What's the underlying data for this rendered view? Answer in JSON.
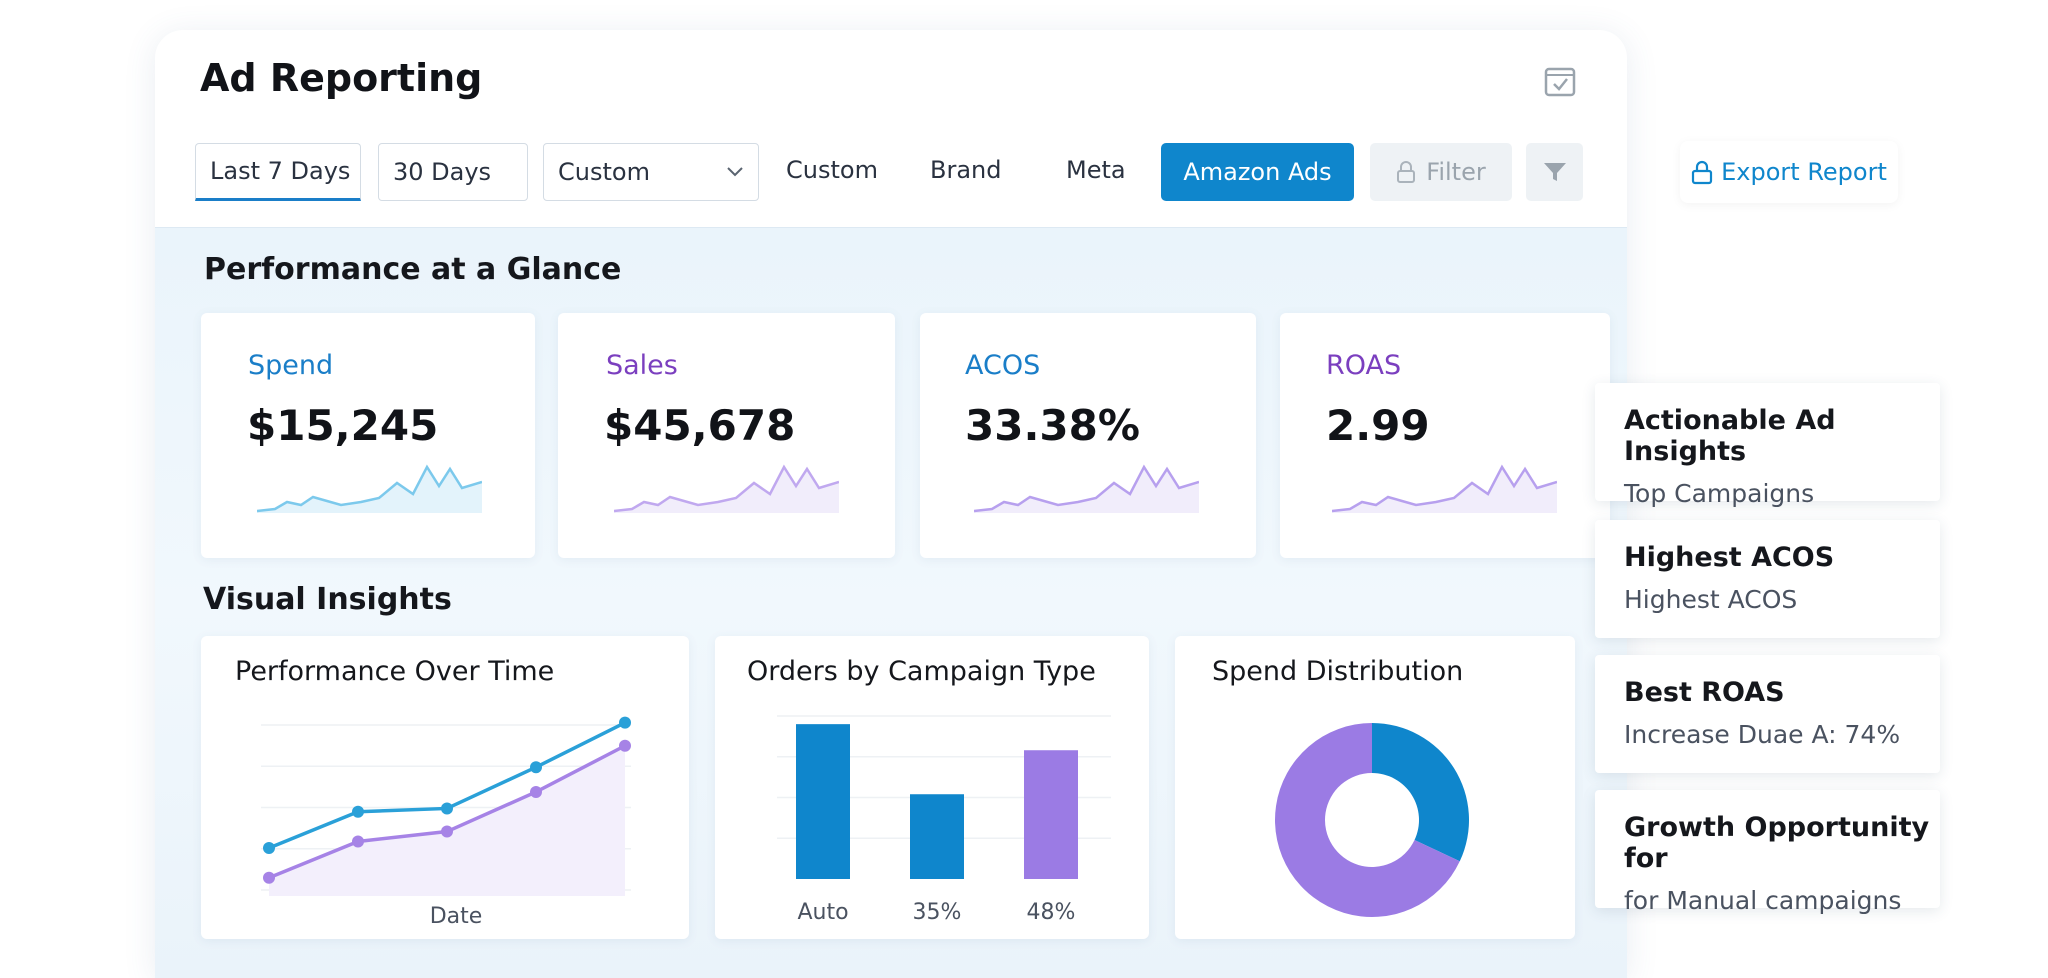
{
  "header": {
    "title": "Ad Reporting"
  },
  "toolbar": {
    "tab_last7": "Last 7 Days",
    "tab_30": "30 Days",
    "select_custom": "Custom",
    "link_custom": "Custom",
    "link_brand": "Brand",
    "link_meta": "Meta",
    "btn_amazon": "Amazon Ads",
    "btn_filter": "Filter",
    "btn_export": "Export Report"
  },
  "glance": {
    "title": "Performance at a Glance",
    "kpis": [
      {
        "label": "Spend",
        "value": "$15,245",
        "color": "#1a7ec8"
      },
      {
        "label": "Sales",
        "value": "$45,678",
        "color": "#7b3fbf"
      },
      {
        "label": "ACOS",
        "value": "33.38%",
        "color": "#1a7ec8"
      },
      {
        "label": "ROAS",
        "value": "2.99",
        "color": "#7b3fbf"
      }
    ]
  },
  "visual": {
    "title": "Visual Insights",
    "perf_title": "Performance Over Time",
    "perf_xlabel": "Date",
    "orders_title": "Orders by Campaign Type",
    "spend_title": "Spend Distribution"
  },
  "chart_data": [
    {
      "type": "line",
      "title": "Performance Over Time",
      "xlabel": "Date",
      "ylabel": "",
      "x": [
        1,
        2,
        3,
        4,
        5
      ],
      "ylim": [
        0,
        100
      ],
      "series": [
        {
          "name": "series-blue",
          "color": "#2aa0d8",
          "values": [
            23,
            45,
            47,
            72,
            99
          ]
        },
        {
          "name": "series-purple",
          "color": "#a683e6",
          "values": [
            5,
            27,
            33,
            57,
            85
          ]
        }
      ]
    },
    {
      "type": "bar",
      "title": "Orders by Campaign Type",
      "categories": [
        "Auto",
        "35%",
        "48%"
      ],
      "values": [
        95,
        52,
        79
      ],
      "colors": [
        "#0f86cc",
        "#0f86cc",
        "#9b7be4"
      ],
      "ylim": [
        0,
        100
      ]
    },
    {
      "type": "pie",
      "title": "Spend Distribution",
      "slices": [
        {
          "label": "blue",
          "value": 32,
          "color": "#0f86cc"
        },
        {
          "label": "purple",
          "value": 68,
          "color": "#9b7be4"
        }
      ]
    }
  ],
  "insights": [
    {
      "title": "Actionable Ad Insights",
      "sub": "Top Campaigns"
    },
    {
      "title": "Highest ACOS",
      "sub": "Highest ACOS"
    },
    {
      "title": "Best ROAS",
      "sub": "Increase Duae A: 74%"
    },
    {
      "title": "Growth Opportunity for",
      "sub": "for Manual campaigns"
    }
  ]
}
